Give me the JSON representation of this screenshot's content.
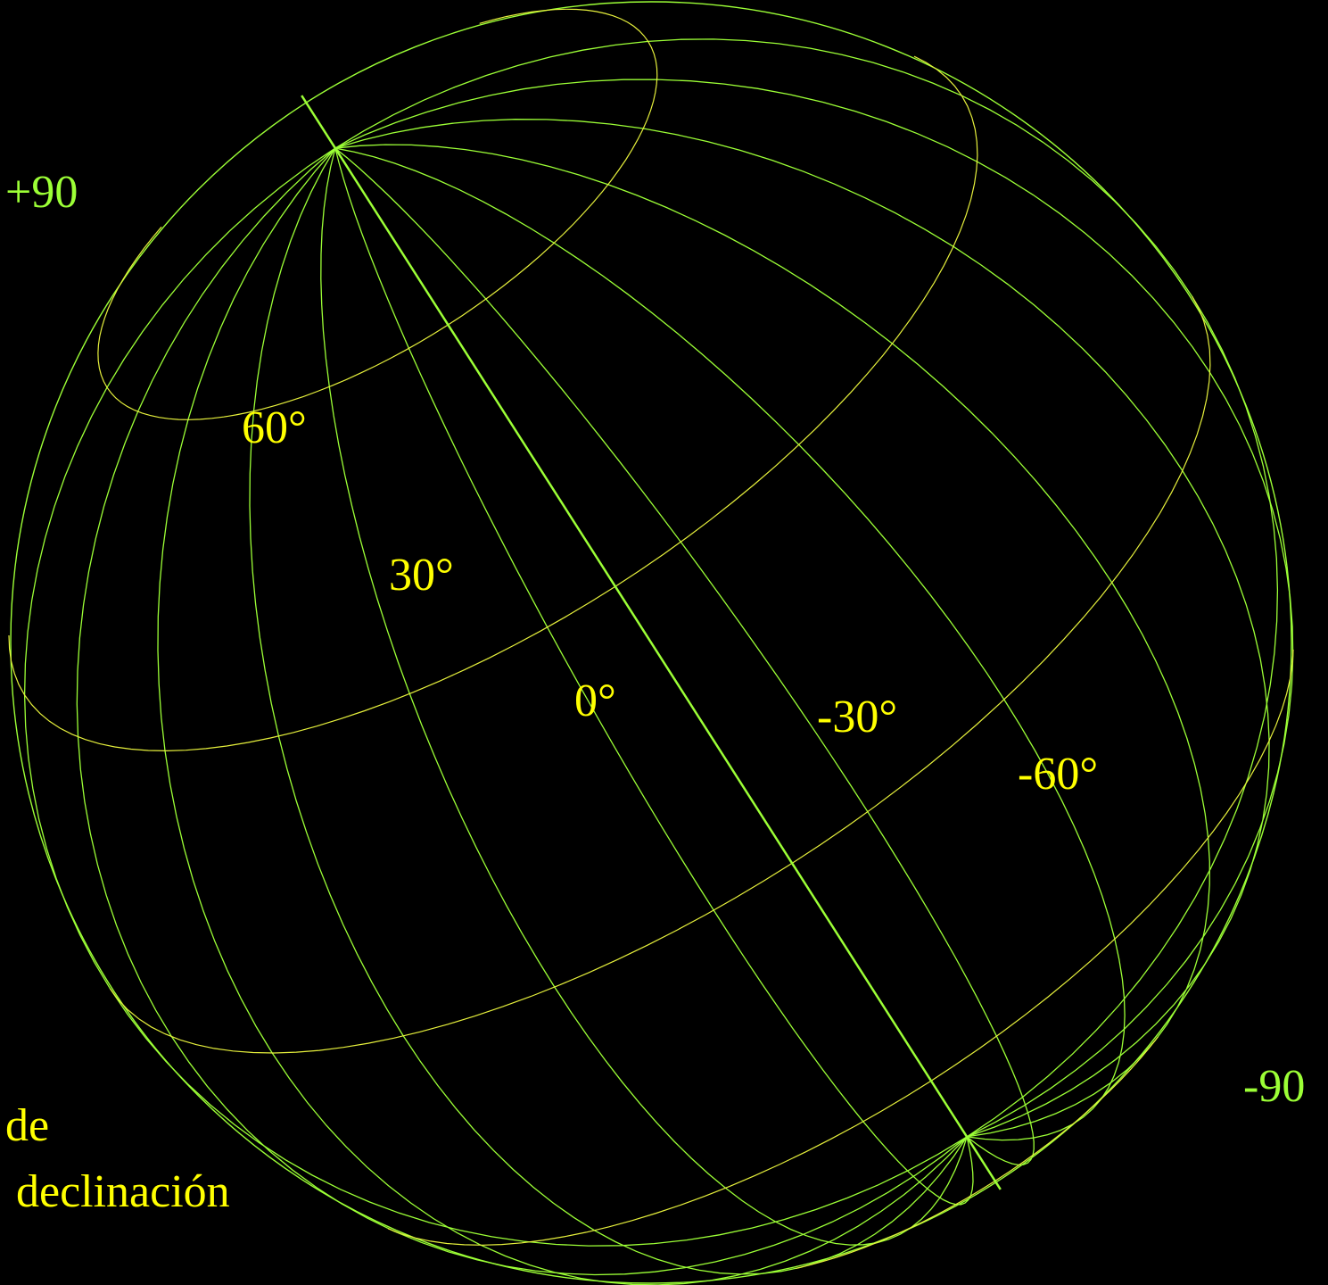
{
  "colors": {
    "background": "#000000",
    "meridian": "#9cff36",
    "parallel": "#e6f03c",
    "label_yellow": "#ffff00",
    "label_green": "#9cff36"
  },
  "poles": {
    "north_label": "+90",
    "south_label": "-90"
  },
  "parallels": [
    {
      "value": 60,
      "label": "60°"
    },
    {
      "value": 30,
      "label": "30°"
    },
    {
      "value": 0,
      "label": "0°"
    },
    {
      "value": -30,
      "label": "-30°"
    },
    {
      "value": -60,
      "label": "-60°"
    }
  ],
  "caption": {
    "line1": "de",
    "line2": "declinación"
  }
}
